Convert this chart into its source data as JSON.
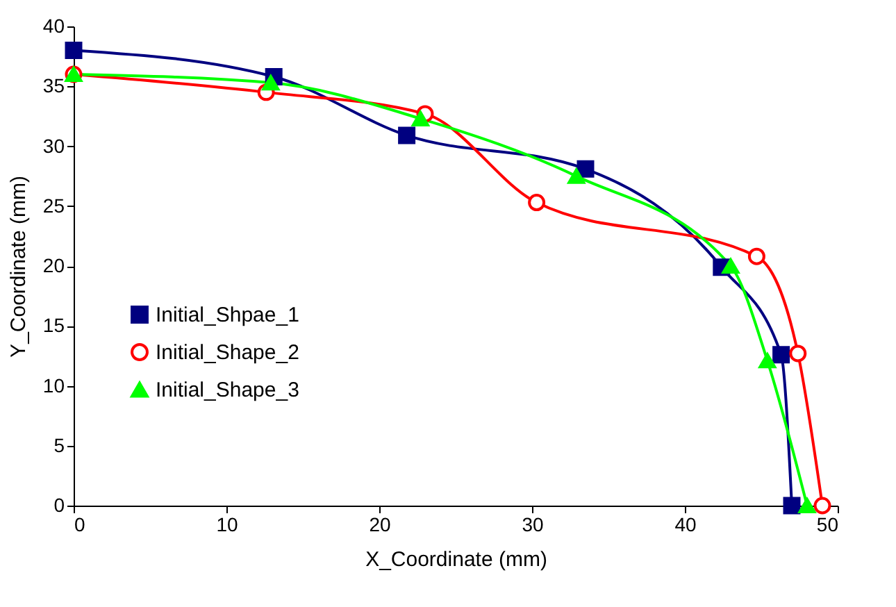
{
  "chart_data": {
    "type": "line",
    "xlabel": "X_Coordinate (mm)",
    "ylabel": "Y_Coordinate (mm)",
    "xlim": [
      0,
      50
    ],
    "xticks": [
      0,
      10,
      20,
      30,
      40,
      50
    ],
    "ylim": [
      0,
      40
    ],
    "yticks": [
      0,
      5,
      10,
      15,
      20,
      25,
      30,
      35,
      40
    ],
    "grid": false,
    "legend": "left",
    "line_style": "solid",
    "series": [
      {
        "name": "Initial_Shpae_1",
        "color": "#000080",
        "marker": "square",
        "x": [
          0,
          13.1,
          21.8,
          33.5,
          42.4,
          46.3,
          47.0
        ],
        "values": [
          38,
          35.8,
          30.9,
          28.1,
          19.9,
          12.6,
          0
        ]
      },
      {
        "name": "Initial_Shape_2",
        "color": "#ff0000",
        "marker": "circle",
        "x": [
          0,
          12.6,
          23.0,
          30.3,
          44.7,
          47.4,
          49.0
        ],
        "values": [
          36,
          34.5,
          32.7,
          25.3,
          20.8,
          12.7,
          0
        ]
      },
      {
        "name": "Initial_Shape_3",
        "color": "#00ff00",
        "marker": "triangle",
        "x": [
          0,
          12.9,
          22.7,
          32.9,
          43.0,
          45.4,
          48.0
        ],
        "values": [
          36,
          35.3,
          32.3,
          27.5,
          20.0,
          12.1,
          0
        ]
      }
    ]
  }
}
